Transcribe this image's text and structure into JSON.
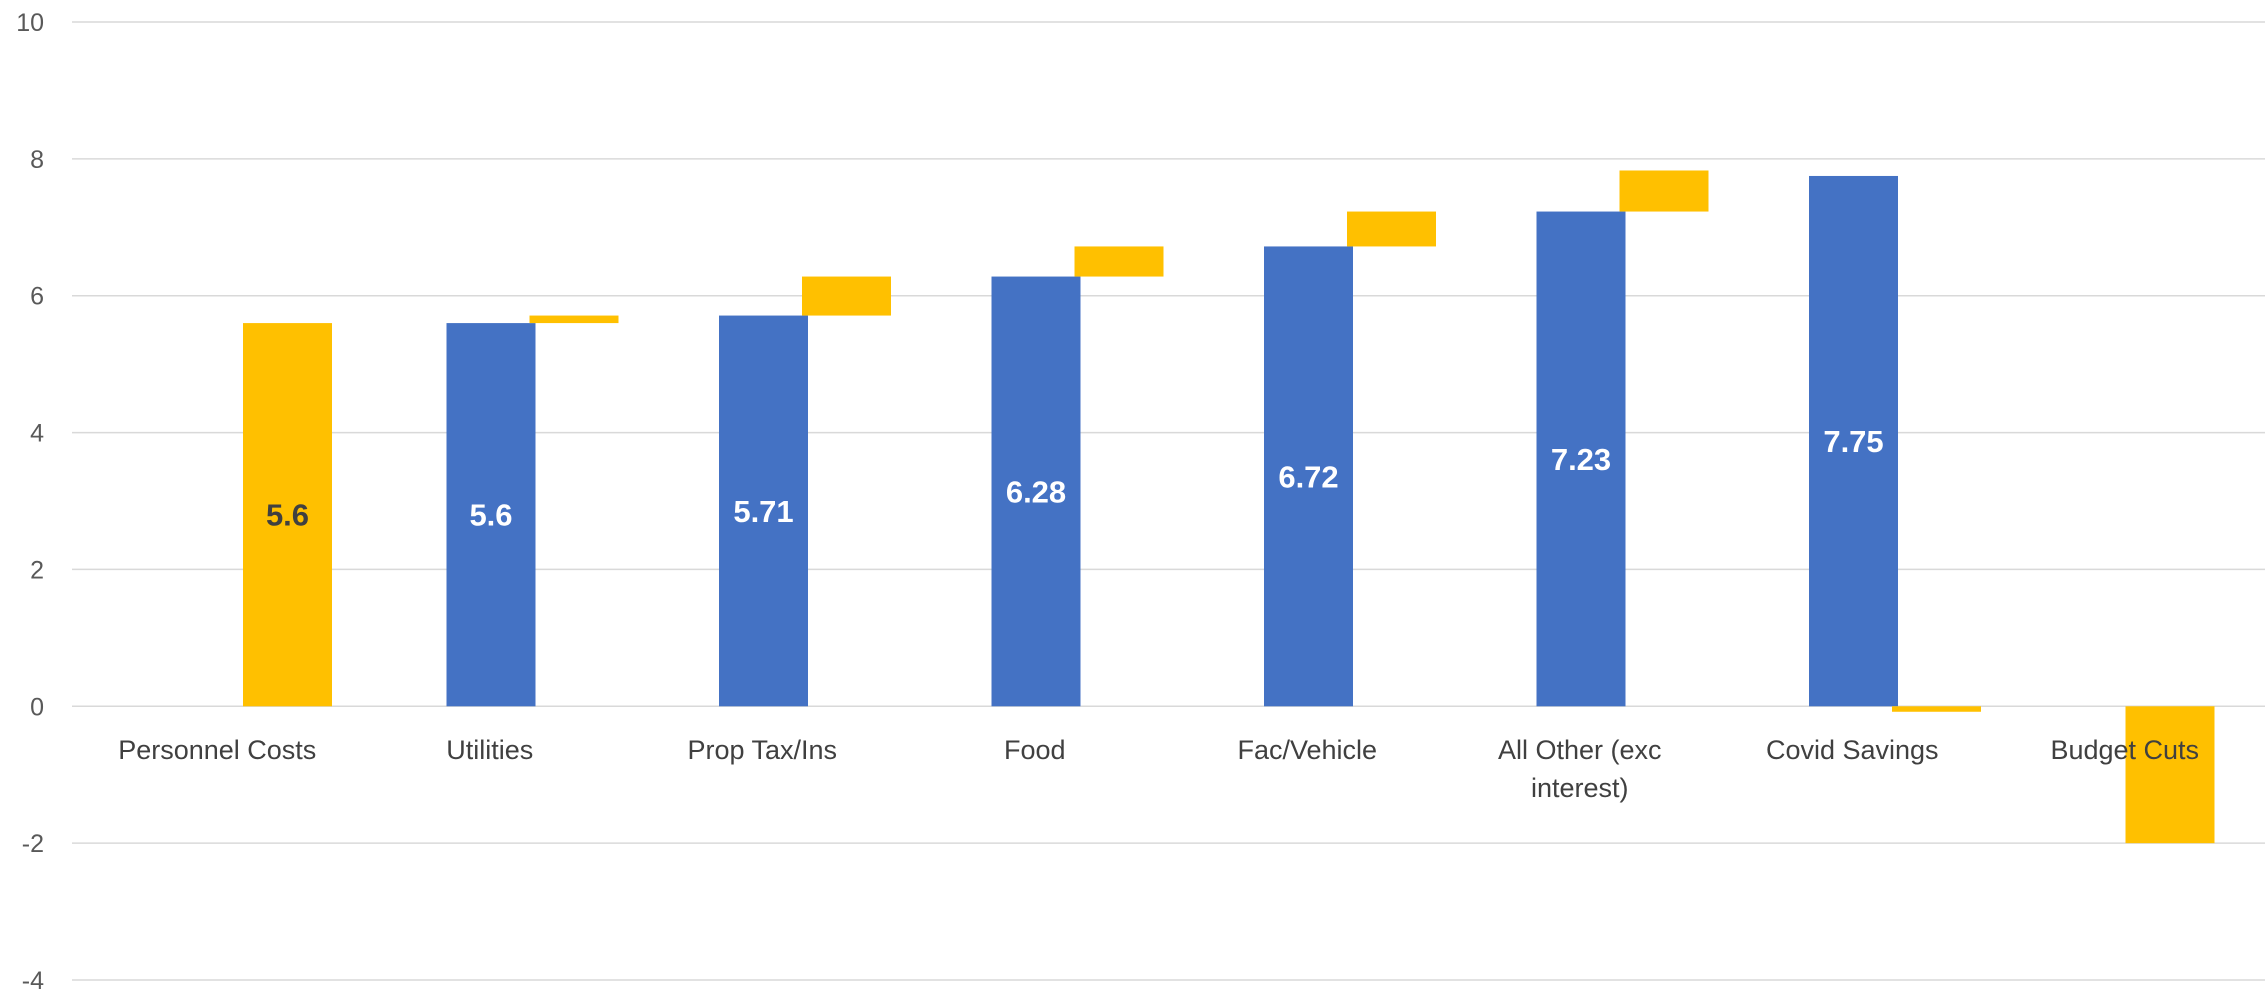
{
  "chart_data": {
    "type": "bar",
    "subtype": "waterfall",
    "categories": [
      "Personnel Costs",
      "Utilities",
      "Prop Tax/Ins",
      "Food",
      "Fac/Vehicle",
      "All Other (exc interest)",
      "Covid Savings",
      "Budget Cuts"
    ],
    "category_label_lines": [
      [
        "Personnel Costs"
      ],
      [
        "Utilities"
      ],
      [
        "Prop Tax/Ins"
      ],
      [
        "Food"
      ],
      [
        "Fac/Vehicle"
      ],
      [
        "All Other (exc",
        "interest)"
      ],
      [
        "Covid Savings"
      ],
      [
        "Budget Cuts"
      ]
    ],
    "series": [
      {
        "values": [
          null,
          5.6,
          5.71,
          6.28,
          6.72,
          7.23,
          7.75,
          null
        ]
      },
      {
        "values": [
          5.6,
          0.11,
          0.57,
          0.44,
          0.51,
          0.6,
          -0.08,
          -2.0
        ]
      }
    ],
    "data_labels": [
      "5.6",
      "5.6",
      "5.71",
      "6.28",
      "6.72",
      "7.23",
      "7.75"
    ],
    "ylim": [
      -4,
      10
    ],
    "yticks": [
      -4,
      -2,
      0,
      2,
      4,
      6,
      8,
      10
    ],
    "grid": true,
    "legend": "none",
    "title": "",
    "xlabel": "",
    "ylabel": "",
    "colors": {
      "blue": "#4472C4",
      "gold": "#FFC000",
      "grid": "#D9D9D9",
      "axis_text": "#595959"
    }
  }
}
